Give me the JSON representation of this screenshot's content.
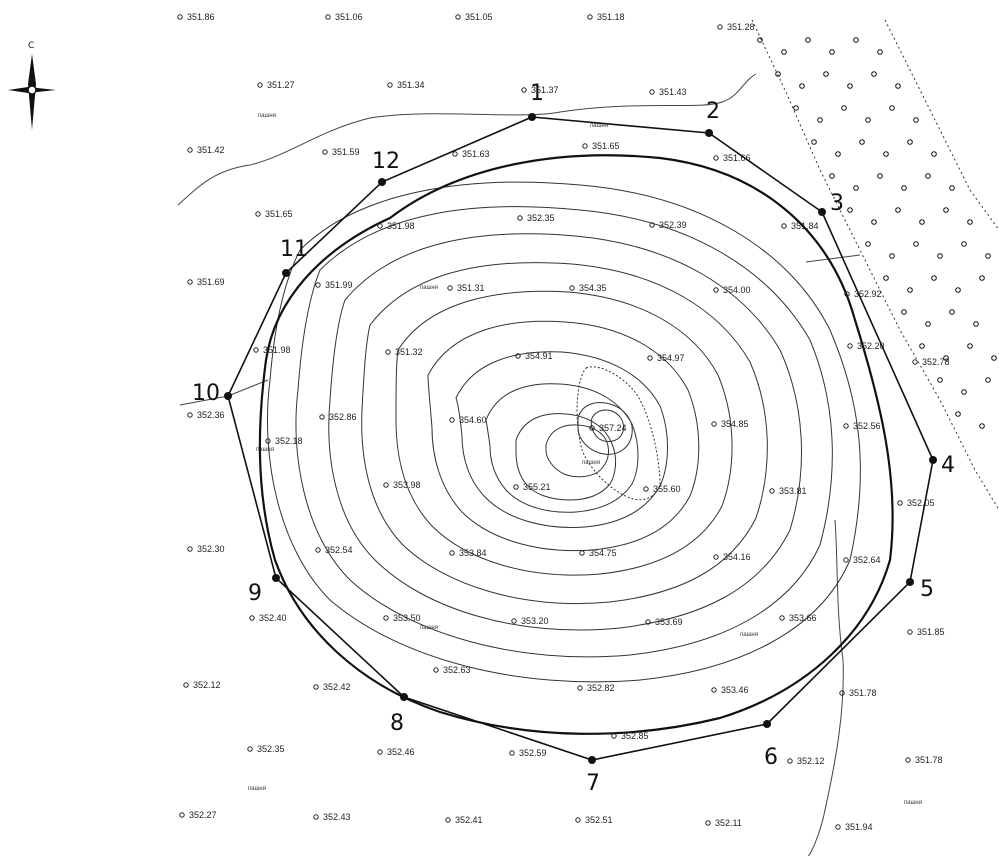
{
  "compass": {
    "north_letter": "С"
  },
  "boundary_points": [
    {
      "id": "p1",
      "label": "1"
    },
    {
      "id": "p2",
      "label": "2"
    },
    {
      "id": "p3",
      "label": "3"
    },
    {
      "id": "p4",
      "label": "4"
    },
    {
      "id": "p5",
      "label": "5"
    },
    {
      "id": "p6",
      "label": "6"
    },
    {
      "id": "p7",
      "label": "7"
    },
    {
      "id": "p8",
      "label": "8"
    },
    {
      "id": "p9",
      "label": "9"
    },
    {
      "id": "p10",
      "label": "10"
    },
    {
      "id": "p11",
      "label": "11"
    },
    {
      "id": "p12",
      "label": "12"
    }
  ],
  "spot_heights": [
    "351.86",
    "351.06",
    "351.05",
    "351.18",
    "351.28",
    "351.27",
    "351.34",
    "351.37",
    "351.43",
    "351.42",
    "351.59",
    "351.63",
    "351.65",
    "351.66",
    "351.65",
    "351.98",
    "352.35",
    "352.39",
    "351.84",
    "351.69",
    "351.99",
    "351.31",
    "354.35",
    "354.00",
    "352.92",
    "351.98",
    "351.32",
    "354.91",
    "354.97",
    "352.20",
    "352.78",
    "352.36",
    "352.86",
    "354.60",
    "357.24",
    "354.85",
    "352.56",
    "352.18",
    "353.98",
    "355.21",
    "355.60",
    "353.81",
    "352.05",
    "352.30",
    "352.54",
    "353.84",
    "354.75",
    "354.16",
    "352.64",
    "352.40",
    "353.50",
    "353.20",
    "353.69",
    "353.66",
    "351.85",
    "352.12",
    "352.42",
    "352.63",
    "352.82",
    "353.46",
    "351.78",
    "352.35",
    "352.46",
    "352.59",
    "352.85",
    "352.12",
    "351.78",
    "352.27",
    "352.43",
    "352.41",
    "352.51",
    "352.11",
    "351.94"
  ],
  "land_labels": [
    "пашня",
    "пашня",
    "пашня",
    "пашня",
    "пашня",
    "пашня",
    "пашня",
    "пашня",
    "пашня"
  ],
  "forest": {
    "dots": 60
  }
}
